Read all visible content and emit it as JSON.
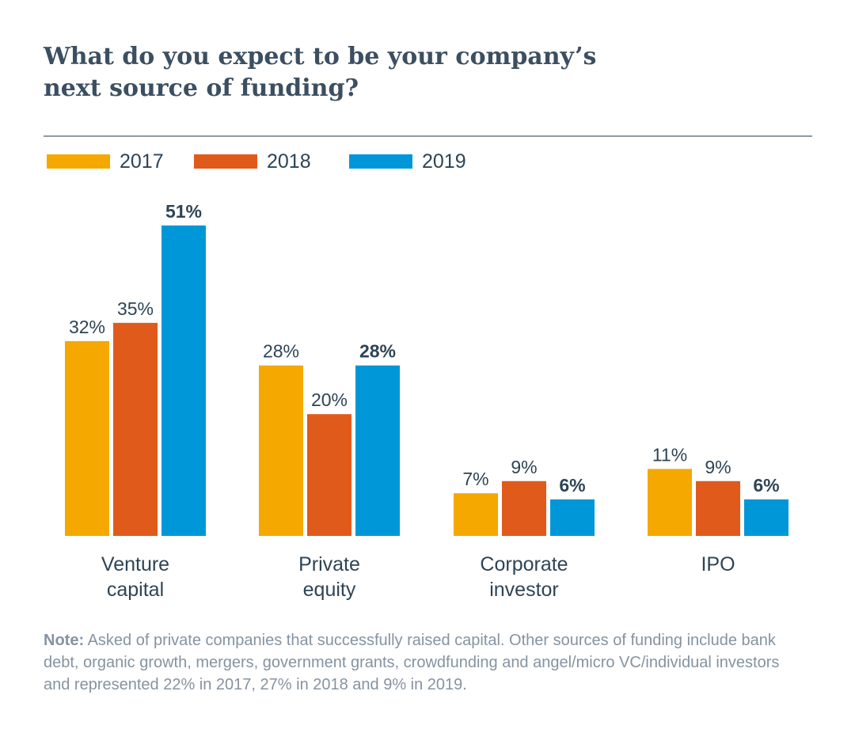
{
  "title": {
    "line1": "What do you expect to be your company’s",
    "line2": "next source of funding?"
  },
  "colors": {
    "2017": "#f5a800",
    "2018": "#e05a1c",
    "2019": "#0097d8"
  },
  "chart_data": {
    "type": "bar",
    "title": "What do you expect to be your company’s next source of funding?",
    "categories": [
      [
        "Venture",
        "capital"
      ],
      [
        "Private",
        "equity"
      ],
      [
        "Corporate",
        "investor"
      ],
      [
        "IPO"
      ]
    ],
    "series": [
      {
        "name": "2017",
        "color": "#f5a800",
        "values": [
          32,
          28,
          7,
          11
        ],
        "labels": [
          "32%",
          "28%",
          "7%",
          "11%"
        ]
      },
      {
        "name": "2018",
        "color": "#e05a1c",
        "values": [
          35,
          20,
          9,
          9
        ],
        "labels": [
          "35%",
          "20%",
          "9%",
          "9%"
        ]
      },
      {
        "name": "2019",
        "color": "#0097d8",
        "values": [
          51,
          28,
          6,
          6
        ],
        "labels": [
          "51%",
          "28%",
          "6%",
          "6%"
        ],
        "bold_labels": true
      }
    ],
    "unit": "%",
    "ylim": [
      0,
      51
    ],
    "grid": false,
    "legend": "top-left"
  },
  "note": {
    "label": "Note:",
    "text": " Asked of private companies that successfully raised capital. Other sources of funding include bank debt, organic growth, mergers, government grants, crowdfunding and angel/micro VC/individual investors and represented 22% in 2017, 27% in 2018 and 9% in 2019."
  }
}
